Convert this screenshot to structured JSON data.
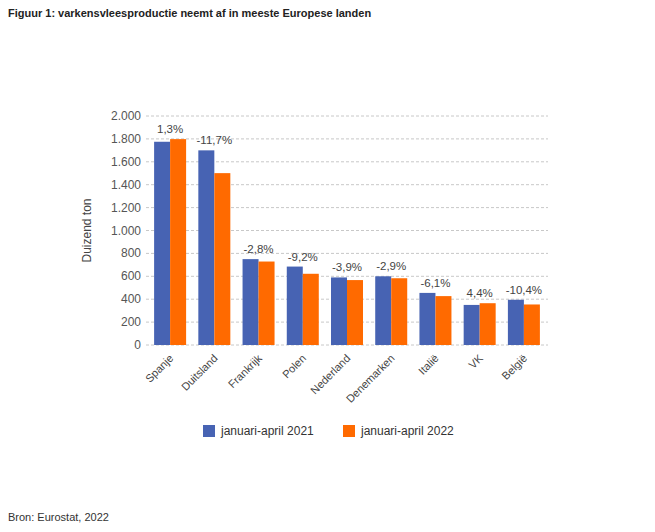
{
  "chart_data": {
    "type": "bar",
    "title": "Figuur 1: varkensvleesproductie neemt af in meeste Europese landen",
    "y_label": "Duizend ton",
    "source": "Bron: Eurostat, 2022",
    "categories": [
      "Spanje",
      "Duitsland",
      "Frankrijk",
      "Polen",
      "Nederland",
      "Denemarken",
      "Italië",
      "VK",
      "België"
    ],
    "series": [
      {
        "name": "januari-april 2021",
        "color": "#4763b3",
        "values": [
          1775,
          1700,
          750,
          685,
          590,
          600,
          455,
          350,
          395
        ]
      },
      {
        "name": "januari-april 2022",
        "color": "#ff6a00",
        "values": [
          1798,
          1501,
          729,
          622,
          567,
          583,
          427,
          365,
          354
        ]
      }
    ],
    "annotations": [
      "1,3%",
      "-11,7%",
      "-2,8%",
      "-9,2%",
      "-3,9%",
      "-2,9%",
      "-6,1%",
      "4,4%",
      "-10,4%"
    ],
    "ylim": [
      0,
      2000
    ],
    "yticks": [
      0,
      200,
      400,
      600,
      800,
      {
        "value": 1000,
        "label": "1.000"
      },
      {
        "value": 1200,
        "label": "1.200"
      },
      {
        "value": 1400,
        "label": "1.400"
      },
      {
        "value": 1600,
        "label": "1.600"
      },
      {
        "value": 1800,
        "label": "1.800"
      },
      {
        "value": 2000,
        "label": "2.000"
      }
    ],
    "grid": true,
    "legend": "bottom"
  }
}
